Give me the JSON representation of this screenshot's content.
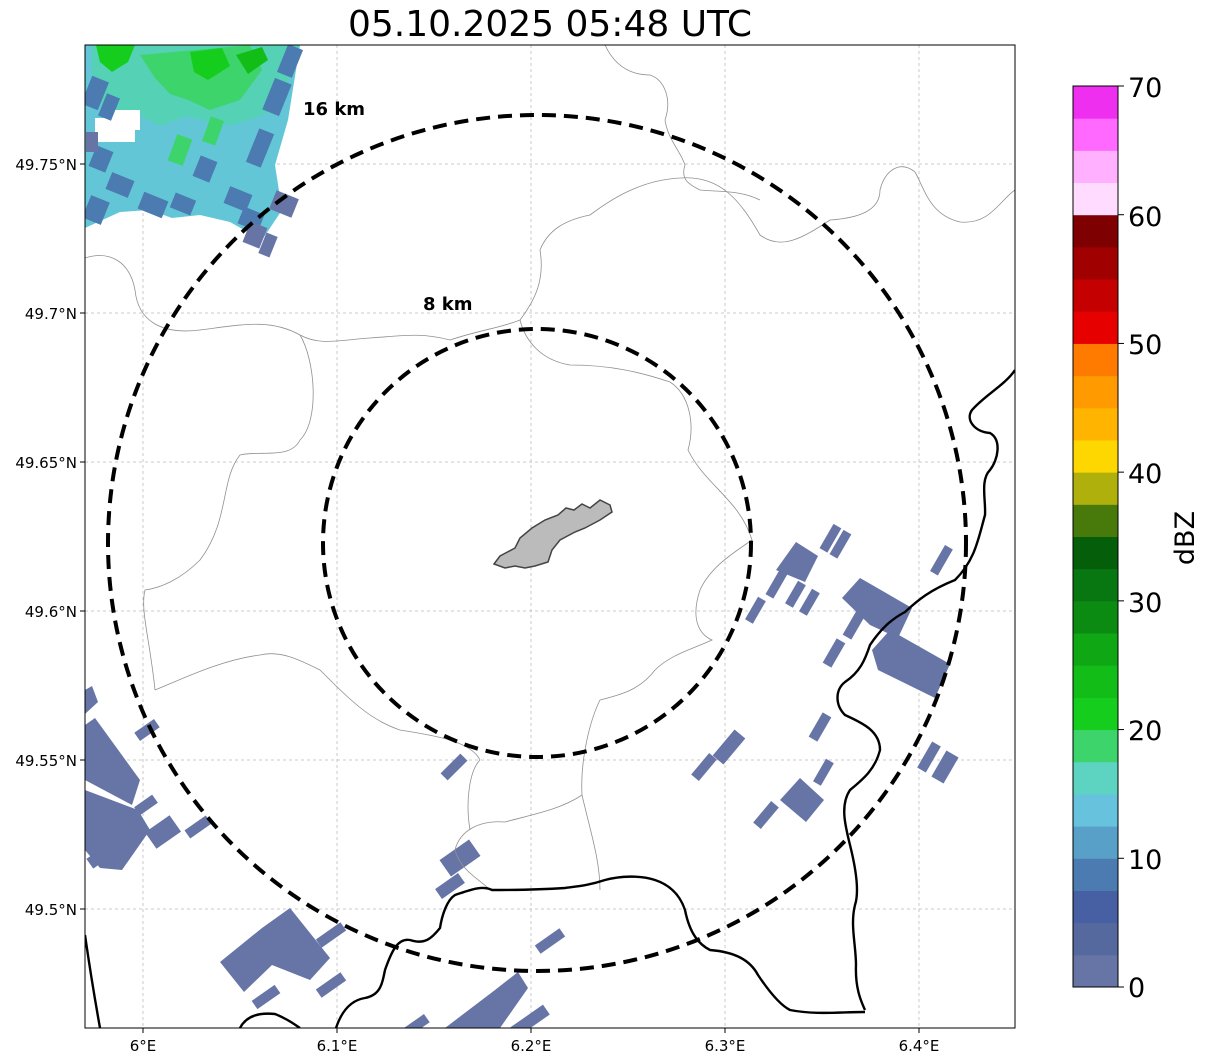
{
  "title": "05.10.2025 05:48 UTC",
  "map": {
    "x_ticks": [
      "6°E",
      "6.1°E",
      "6.2°E",
      "6.3°E",
      "6.4°E"
    ],
    "y_ticks": [
      "49.75°N",
      "49.7°N",
      "49.65°N",
      "49.6°N",
      "49.55°N",
      "49.5°N"
    ],
    "rings": [
      {
        "label": "16 km",
        "radius_km": 16
      },
      {
        "label": "8 km",
        "radius_km": 8
      }
    ],
    "center": {
      "lon": 6.2,
      "lat": 49.623
    },
    "gridlines": true,
    "precip_color": "#6575a6"
  },
  "colorbar": {
    "label": "dBZ",
    "min": 0,
    "max": 70,
    "ticks": [
      "0",
      "10",
      "20",
      "30",
      "40",
      "50",
      "60",
      "70"
    ],
    "colors": [
      "#6675a6",
      "#56699f",
      "#4760a4",
      "#4b7bb0",
      "#58a0c8",
      "#67c2de",
      "#5dd3c2",
      "#3dd46c",
      "#14cd1c",
      "#13bd17",
      "#0fa814",
      "#0c8b12",
      "#087712",
      "#055e0a",
      "#477a0a",
      "#b0b00d",
      "#ffd700",
      "#ffb400",
      "#ff9a00",
      "#ff7b00",
      "#e70000",
      "#c50000",
      "#a10000",
      "#7f0000",
      "#ffdcff",
      "#ffb1ff",
      "#ff69ff",
      "#ee2ff0"
    ]
  }
}
